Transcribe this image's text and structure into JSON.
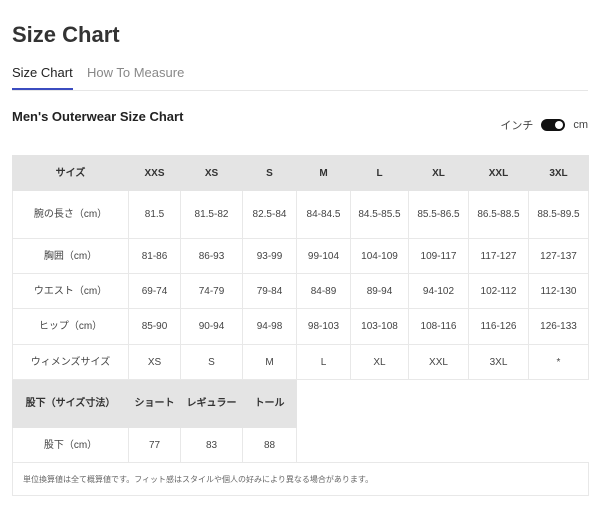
{
  "page_title": "Size Chart",
  "tabs": [
    {
      "label": "Size Chart",
      "active": true
    },
    {
      "label": "How To Measure",
      "active": false
    }
  ],
  "section_title": "Men's Outerwear Size Chart",
  "unit_toggle": {
    "left_label": "インチ",
    "right_label": "cm",
    "selected": "cm"
  },
  "table": {
    "header": [
      "サイズ",
      "XXS",
      "XS",
      "S",
      "M",
      "L",
      "XL",
      "XXL",
      "3XL"
    ],
    "rows": [
      [
        "腕の長さ（cm）",
        "81.5",
        "81.5-82",
        "82.5-84",
        "84-84.5",
        "84.5-85.5",
        "85.5-86.5",
        "86.5-88.5",
        "88.5-89.5"
      ],
      [
        "胸囲（cm）",
        "81-86",
        "86-93",
        "93-99",
        "99-104",
        "104-109",
        "109-117",
        "117-127",
        "127-137"
      ],
      [
        "ウエスト（cm）",
        "69-74",
        "74-79",
        "79-84",
        "84-89",
        "89-94",
        "94-102",
        "102-112",
        "112-130"
      ],
      [
        "ヒップ（cm）",
        "85-90",
        "90-94",
        "94-98",
        "98-103",
        "103-108",
        "108-116",
        "116-126",
        "126-133"
      ],
      [
        "ウィメンズサイズ",
        "XS",
        "S",
        "M",
        "L",
        "XL",
        "XXL",
        "3XL",
        "*"
      ]
    ],
    "inseam_header": [
      "股下（サイズ寸法）",
      "ショート",
      "レギュラー",
      "トール"
    ],
    "inseam_row": [
      "股下（cm）",
      "77",
      "83",
      "88"
    ],
    "note": "単位換算値は全て概算値です。フィット感はスタイルや個人の好みにより異なる場合があります。"
  },
  "colors": {
    "accent": "#3b4cc0",
    "header_bg": "#e4e4e4",
    "toggle": "#111111"
  }
}
